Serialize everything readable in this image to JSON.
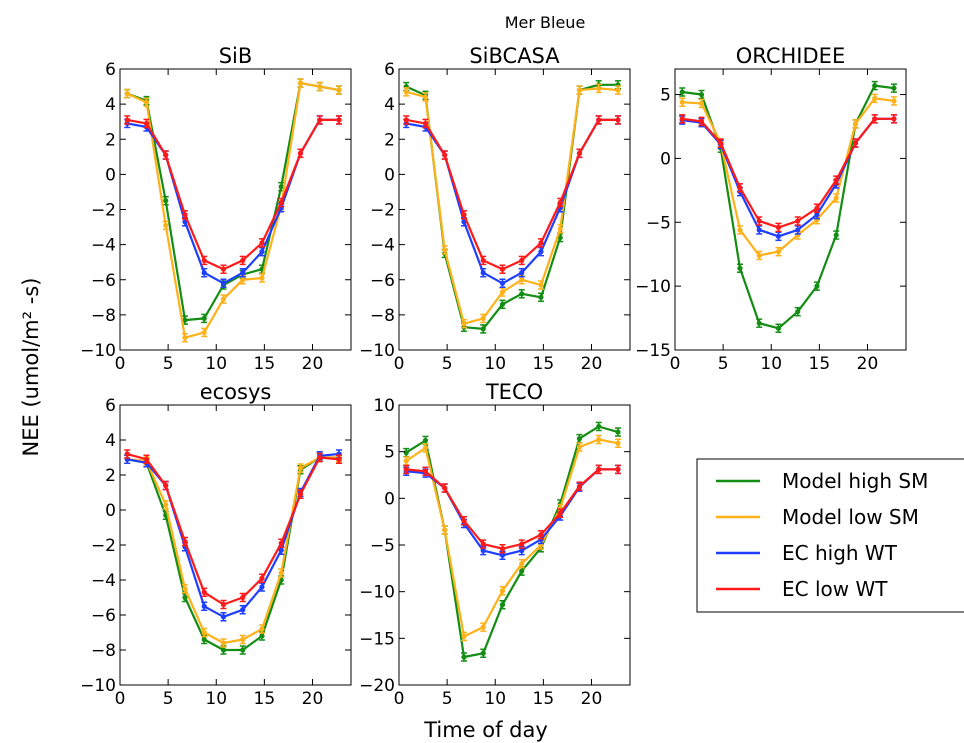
{
  "figure_title": "Mer Bleue",
  "ylabel": "NEE (umol/m² -s)",
  "xlabel": "Time of day",
  "series_colors": {
    "Model high SM": "#138d13",
    "Model low SM": "#ffb11a",
    "EC high WT": "#1f3fff",
    "EC low WT": "#ff1a1a"
  },
  "legend": {
    "placement": "center-right",
    "entries": [
      {
        "label": "Model high SM",
        "color": "#138d13"
      },
      {
        "label": "Model low SM",
        "color": "#ffb11a"
      },
      {
        "label": "EC high WT",
        "color": "#1f3fff"
      },
      {
        "label": "EC low WT",
        "color": "#ff1a1a"
      }
    ]
  },
  "chart_data": [
    {
      "type": "line",
      "title": "SiB",
      "xlim": [
        0,
        24
      ],
      "ylim": [
        -10,
        6
      ],
      "xticks": [
        "0",
        "5",
        "10",
        "15",
        "20"
      ],
      "xtick_values": [
        0,
        5,
        10,
        15,
        20
      ],
      "yticks": [
        "−10",
        "−8",
        "−6",
        "−4",
        "−2",
        "0",
        "2",
        "4",
        "6"
      ],
      "ytick_values": [
        -10,
        -8,
        -6,
        -4,
        -2,
        0,
        2,
        4,
        6
      ],
      "x": [
        0.75,
        2.75,
        4.75,
        6.75,
        8.75,
        10.75,
        12.75,
        14.75,
        16.75,
        18.75,
        20.75,
        22.75
      ],
      "series": [
        {
          "name": "Model high SM",
          "values": [
            4.6,
            4.2,
            -1.5,
            -8.3,
            -8.2,
            -6.3,
            -5.7,
            -5.4,
            -0.7,
            5.2,
            5.0,
            4.8
          ]
        },
        {
          "name": "Model low SM",
          "values": [
            4.6,
            4.1,
            -2.9,
            -9.3,
            -9.0,
            -7.1,
            -6.0,
            -5.9,
            -1.8,
            5.2,
            5.0,
            4.8
          ]
        },
        {
          "name": "EC high WT",
          "values": [
            2.9,
            2.7,
            1.1,
            -2.7,
            -5.6,
            -6.2,
            -5.6,
            -4.4,
            -1.9,
            1.2,
            3.1,
            3.1
          ]
        },
        {
          "name": "EC low WT",
          "values": [
            3.1,
            2.9,
            1.1,
            -2.3,
            -4.9,
            -5.4,
            -4.9,
            -3.9,
            -1.6,
            1.2,
            3.1,
            3.1
          ]
        }
      ]
    },
    {
      "type": "line",
      "title": "SiBCASA",
      "xlim": [
        0,
        24
      ],
      "ylim": [
        -10,
        6
      ],
      "xticks": [
        "0",
        "5",
        "10",
        "15",
        "20"
      ],
      "xtick_values": [
        0,
        5,
        10,
        15,
        20
      ],
      "yticks": [
        "−10",
        "−8",
        "−6",
        "−4",
        "−2",
        "0",
        "2",
        "4",
        "6"
      ],
      "ytick_values": [
        -10,
        -8,
        -6,
        -4,
        -2,
        0,
        2,
        4,
        6
      ],
      "x": [
        0.75,
        2.75,
        4.75,
        6.75,
        8.75,
        10.75,
        12.75,
        14.75,
        16.75,
        18.75,
        20.75,
        22.75
      ],
      "series": [
        {
          "name": "Model high SM",
          "values": [
            5.0,
            4.5,
            -4.5,
            -8.7,
            -8.8,
            -7.4,
            -6.8,
            -7.0,
            -3.6,
            4.8,
            5.1,
            5.1
          ]
        },
        {
          "name": "Model low SM",
          "values": [
            4.7,
            4.4,
            -4.3,
            -8.5,
            -8.2,
            -6.7,
            -6.0,
            -6.3,
            -3.1,
            4.8,
            4.9,
            4.8
          ]
        },
        {
          "name": "EC high WT",
          "values": [
            2.9,
            2.7,
            1.1,
            -2.7,
            -5.6,
            -6.2,
            -5.6,
            -4.4,
            -1.9,
            1.2,
            3.1,
            3.1
          ]
        },
        {
          "name": "EC low WT",
          "values": [
            3.1,
            2.9,
            1.1,
            -2.3,
            -4.9,
            -5.4,
            -4.9,
            -3.9,
            -1.6,
            1.2,
            3.1,
            3.1
          ]
        }
      ]
    },
    {
      "type": "line",
      "title": "ORCHIDEE",
      "xlim": [
        0,
        24
      ],
      "ylim": [
        -15,
        7
      ],
      "xticks": [
        "0",
        "5",
        "10",
        "15",
        "20"
      ],
      "xtick_values": [
        0,
        5,
        10,
        15,
        20
      ],
      "yticks": [
        "−15",
        "−10",
        "−5",
        "0",
        "5"
      ],
      "ytick_values": [
        -15,
        -10,
        -5,
        0,
        5
      ],
      "x": [
        0.75,
        2.75,
        4.75,
        6.75,
        8.75,
        10.75,
        12.75,
        14.75,
        16.75,
        18.75,
        20.75,
        22.75
      ],
      "series": [
        {
          "name": "Model high SM",
          "values": [
            5.2,
            5.0,
            0.8,
            -8.6,
            -12.9,
            -13.3,
            -12.0,
            -10.0,
            -6.0,
            2.7,
            5.7,
            5.5
          ]
        },
        {
          "name": "Model low SM",
          "values": [
            4.4,
            4.3,
            1.2,
            -5.6,
            -7.6,
            -7.3,
            -6.0,
            -4.8,
            -3.1,
            2.7,
            4.7,
            4.5
          ]
        },
        {
          "name": "EC high WT",
          "values": [
            3.0,
            2.8,
            1.1,
            -2.6,
            -5.6,
            -6.1,
            -5.6,
            -4.4,
            -2.0,
            1.2,
            3.1,
            3.1
          ]
        },
        {
          "name": "EC low WT",
          "values": [
            3.1,
            2.9,
            1.2,
            -2.3,
            -4.9,
            -5.4,
            -4.9,
            -3.9,
            -1.7,
            1.2,
            3.1,
            3.1
          ]
        }
      ]
    },
    {
      "type": "line",
      "title": "ecosys",
      "xlim": [
        0,
        24
      ],
      "ylim": [
        -10,
        6
      ],
      "xticks": [
        "0",
        "5",
        "10",
        "15",
        "20"
      ],
      "xtick_values": [
        0,
        5,
        10,
        15,
        20
      ],
      "yticks": [
        "−10",
        "−8",
        "−6",
        "−4",
        "−2",
        "0",
        "2",
        "4",
        "6"
      ],
      "ytick_values": [
        -10,
        -8,
        -6,
        -4,
        -2,
        0,
        2,
        4,
        6
      ],
      "x": [
        0.75,
        2.75,
        4.75,
        6.75,
        8.75,
        10.75,
        12.75,
        14.75,
        16.75,
        18.75,
        20.75,
        22.75
      ],
      "series": [
        {
          "name": "Model high SM",
          "values": [
            2.9,
            2.7,
            -0.3,
            -5.0,
            -7.4,
            -8.0,
            -8.0,
            -7.2,
            -4.0,
            2.3,
            3.0,
            3.0
          ]
        },
        {
          "name": "Model low SM",
          "values": [
            2.9,
            2.8,
            0.3,
            -4.5,
            -7.0,
            -7.6,
            -7.4,
            -6.8,
            -3.6,
            2.4,
            3.0,
            3.0
          ]
        },
        {
          "name": "EC high WT",
          "values": [
            2.9,
            2.7,
            1.4,
            -2.1,
            -5.5,
            -6.1,
            -5.7,
            -4.4,
            -2.3,
            1.0,
            3.1,
            3.2
          ]
        },
        {
          "name": "EC low WT",
          "values": [
            3.2,
            2.9,
            1.4,
            -1.8,
            -4.7,
            -5.4,
            -5.0,
            -3.9,
            -1.9,
            0.9,
            3.0,
            2.9
          ]
        }
      ]
    },
    {
      "type": "line",
      "title": "TECO",
      "xlim": [
        0,
        24
      ],
      "ylim": [
        -20,
        10
      ],
      "xticks": [
        "0",
        "5",
        "10",
        "15",
        "20"
      ],
      "xtick_values": [
        0,
        5,
        10,
        15,
        20
      ],
      "yticks": [
        "−20",
        "−15",
        "−10",
        "−5",
        "0",
        "5",
        "10"
      ],
      "ytick_values": [
        -20,
        -15,
        -10,
        -5,
        0,
        5,
        10
      ],
      "x": [
        0.75,
        2.75,
        4.75,
        6.75,
        8.75,
        10.75,
        12.75,
        14.75,
        16.75,
        18.75,
        20.75,
        22.75
      ],
      "series": [
        {
          "name": "Model high SM",
          "values": [
            4.9,
            6.2,
            -3.4,
            -17.0,
            -16.6,
            -11.4,
            -7.8,
            -5.3,
            -0.6,
            6.4,
            7.7,
            7.1
          ]
        },
        {
          "name": "Model low SM",
          "values": [
            4.0,
            5.4,
            -3.4,
            -14.8,
            -13.8,
            -9.9,
            -7.0,
            -5.0,
            -1.1,
            5.5,
            6.3,
            5.9
          ]
        },
        {
          "name": "EC high WT",
          "values": [
            2.9,
            2.7,
            1.1,
            -2.7,
            -5.6,
            -6.1,
            -5.6,
            -4.4,
            -1.9,
            1.2,
            3.1,
            3.1
          ]
        },
        {
          "name": "EC low WT",
          "values": [
            3.1,
            2.9,
            1.1,
            -2.4,
            -4.9,
            -5.4,
            -4.9,
            -3.9,
            -1.6,
            1.3,
            3.1,
            3.1
          ]
        }
      ]
    }
  ]
}
